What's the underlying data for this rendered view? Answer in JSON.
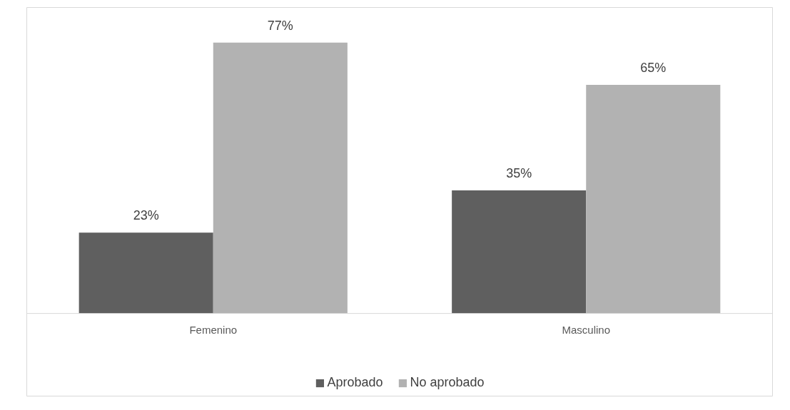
{
  "chart_data": {
    "type": "bar",
    "categories": [
      "Femenino",
      "Masculino"
    ],
    "series": [
      {
        "name": "Aprobado",
        "color": "#5f5f5f",
        "values": [
          23,
          35
        ],
        "value_labels": [
          "23%",
          "35%"
        ]
      },
      {
        "name": "No aprobado",
        "color": "#b2b2b2",
        "values": [
          77,
          65
        ],
        "value_labels": [
          "77%",
          "65%"
        ]
      }
    ],
    "legend": "bottom"
  }
}
